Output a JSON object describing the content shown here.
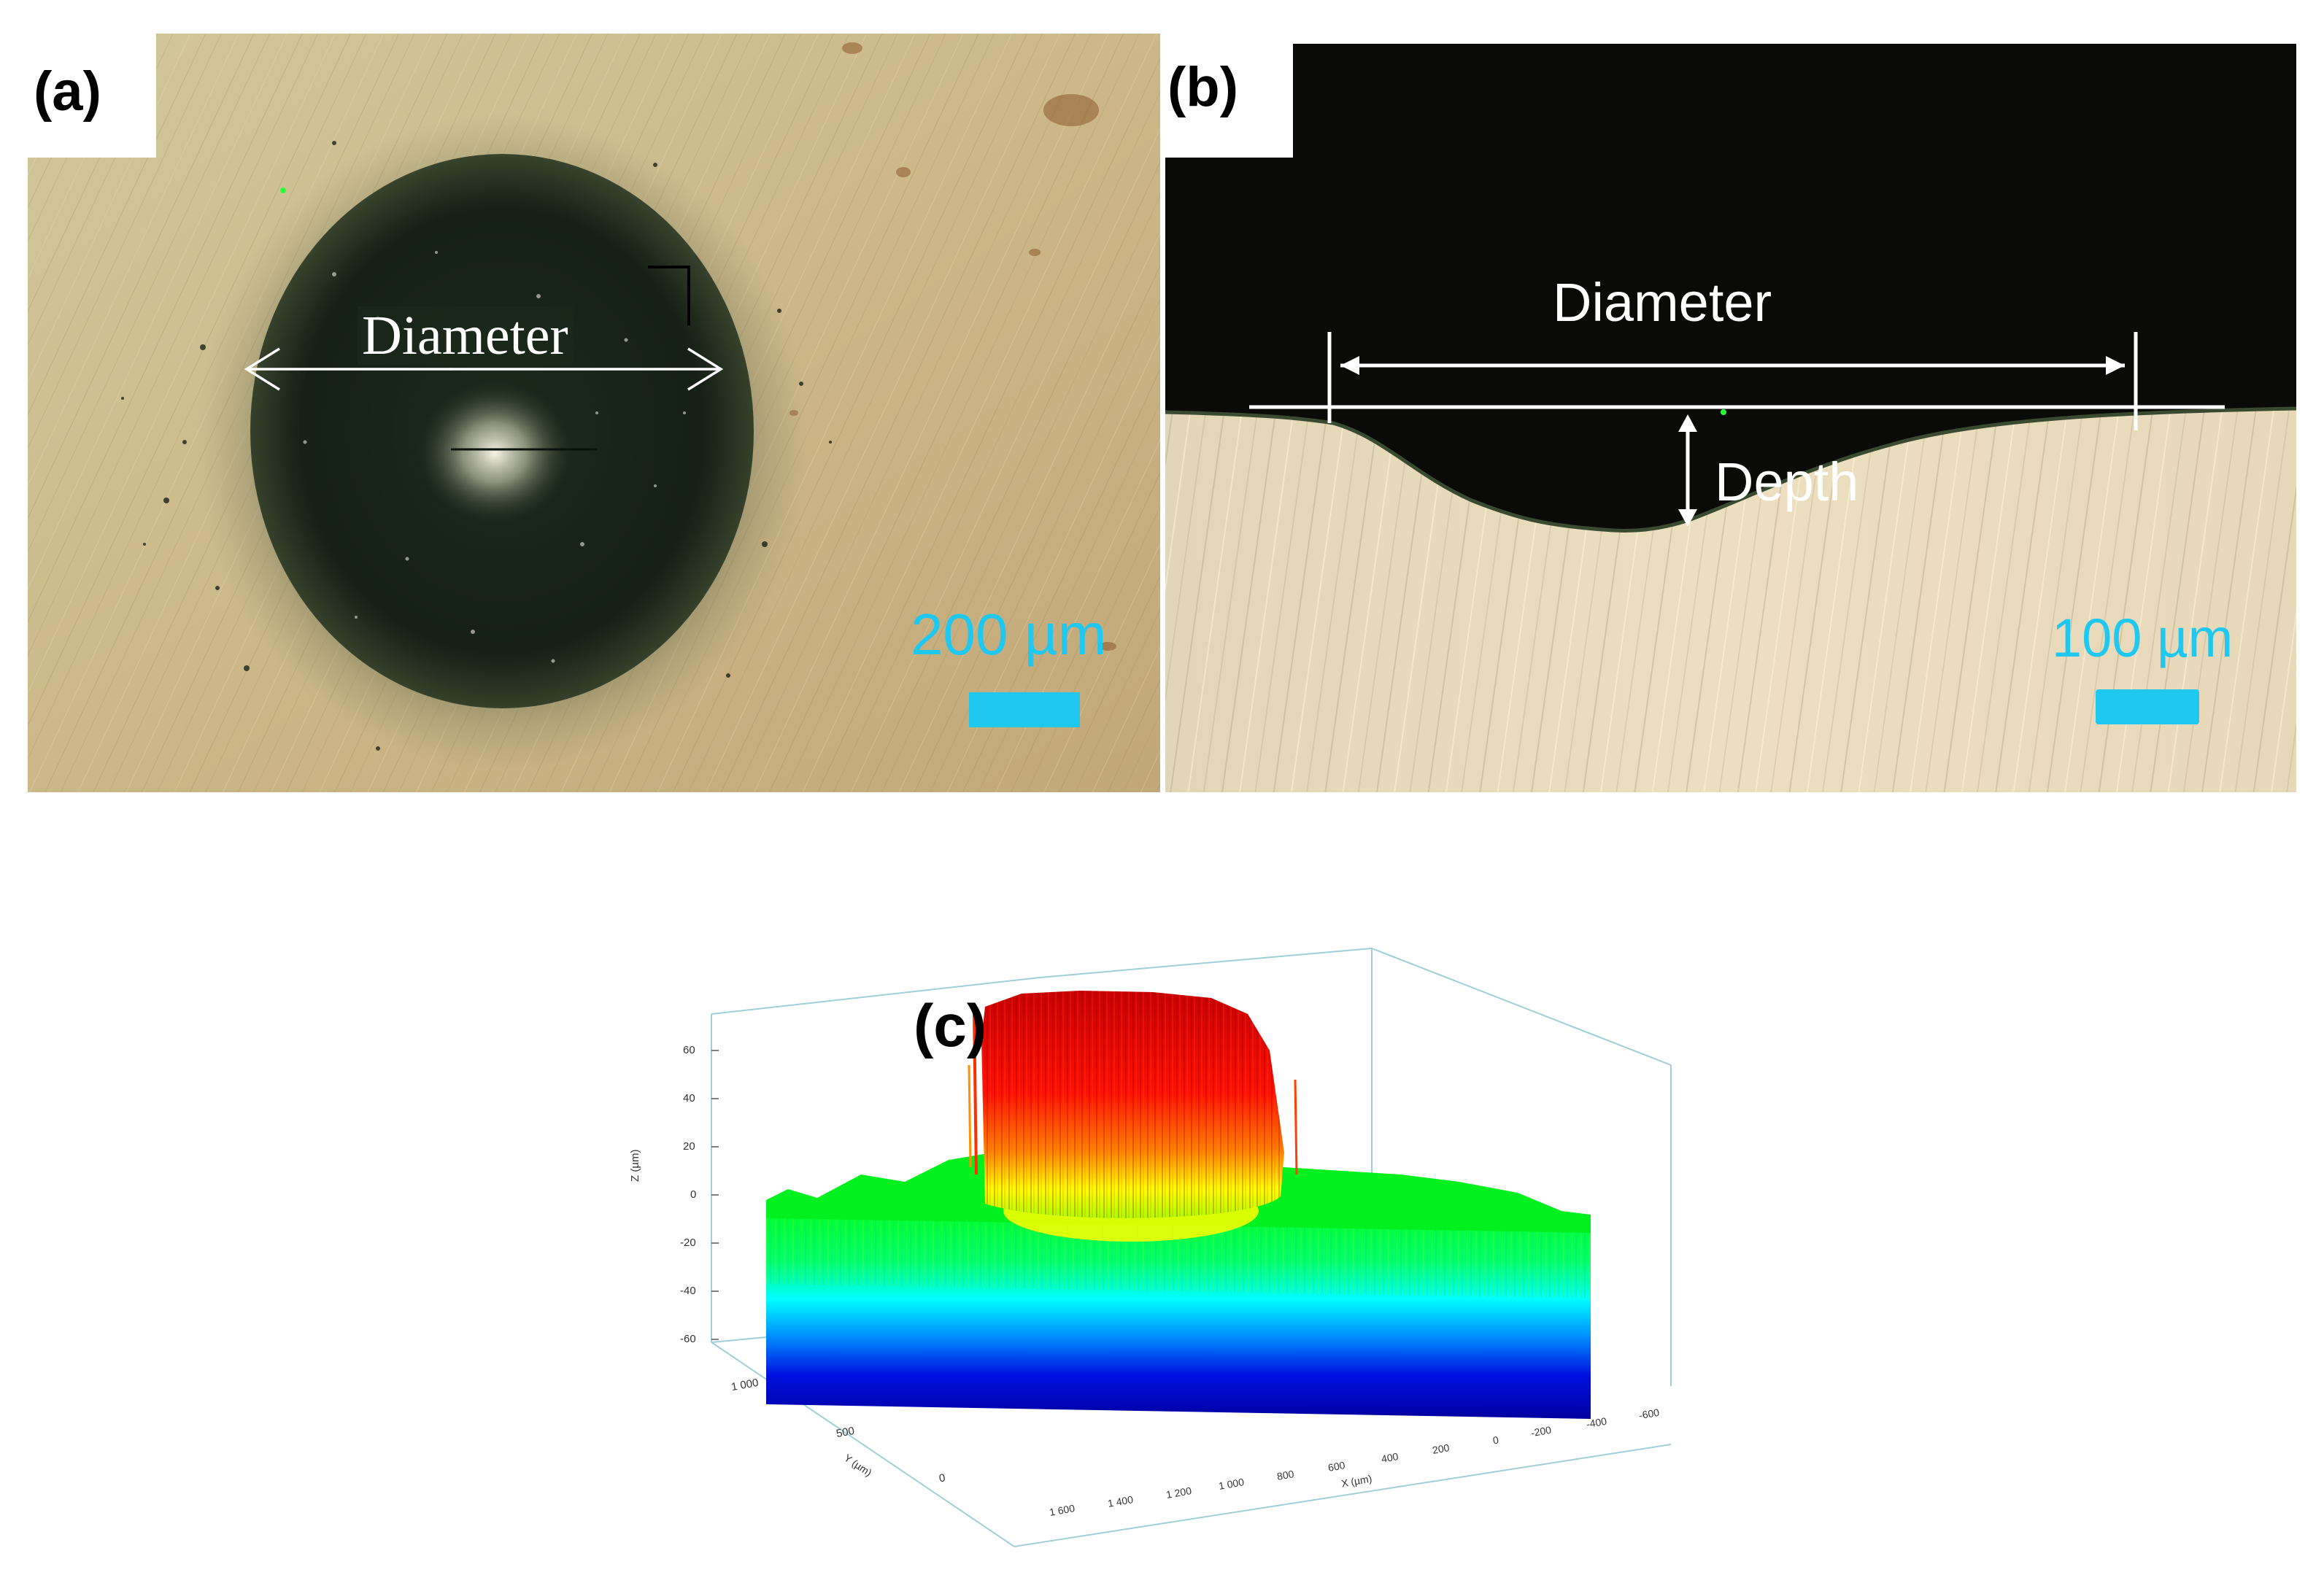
{
  "panel_a": {
    "label": "(a)",
    "annotation": "Diameter",
    "scale_bar_label": "200 µm",
    "scale_bar_color": "#1ec8f0"
  },
  "panel_b": {
    "label": "(b)",
    "annotation_diameter": "Diameter",
    "annotation_depth": "Depth",
    "scale_bar_label": "100 µm",
    "scale_bar_color": "#1ec8f0"
  },
  "panel_c": {
    "label": "(c)",
    "z_axis_label": "Z (µm)",
    "z_ticks": [
      "60",
      "40",
      "20",
      "0",
      "-20",
      "-40",
      "-60"
    ],
    "y_axis_label": "Y (µm)",
    "y_ticks": [
      "1 000",
      "500",
      "0"
    ],
    "x_axis_label": "X (µm)",
    "x_ticks": [
      "1 600",
      "1 400",
      "1 200",
      "1 000",
      "800",
      "600",
      "400",
      "200",
      "0",
      "-200",
      "-400",
      "-600"
    ],
    "colormap": [
      "#0000b4",
      "#0060ff",
      "#00ffff",
      "#00ff40",
      "#7cff00",
      "#ffff00",
      "#ff8000",
      "#ff0000",
      "#c00000"
    ]
  }
}
